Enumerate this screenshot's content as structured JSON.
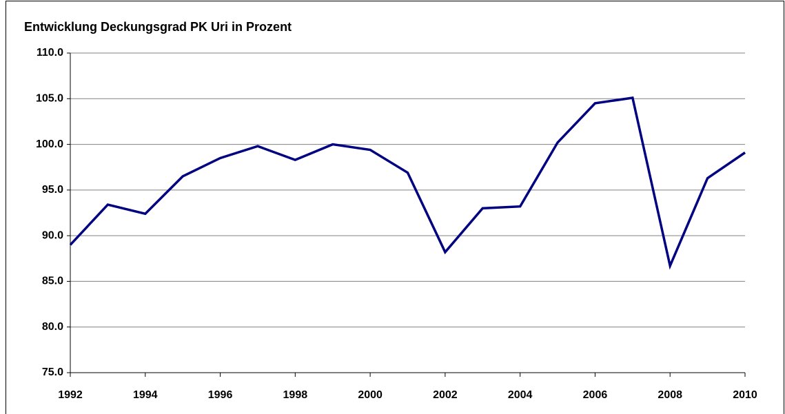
{
  "chart_data": {
    "type": "line",
    "title": "Entwicklung Deckungsgrad PK Uri in Prozent",
    "x": [
      1992,
      1993,
      1994,
      1995,
      1996,
      1997,
      1998,
      1999,
      2000,
      2001,
      2002,
      2003,
      2004,
      2005,
      2006,
      2007,
      2008,
      2009,
      2010
    ],
    "series": [
      {
        "name": "Deckungsgrad",
        "color": "#000080",
        "values": [
          89.0,
          93.4,
          92.4,
          96.5,
          98.5,
          99.8,
          98.3,
          100.0,
          99.4,
          96.9,
          88.2,
          93.0,
          93.2,
          100.2,
          104.5,
          105.1,
          86.7,
          96.3,
          99.1
        ]
      }
    ],
    "xlim": [
      1992,
      2010
    ],
    "xticks": [
      1992,
      1994,
      1996,
      1998,
      2000,
      2002,
      2004,
      2006,
      2008,
      2010
    ],
    "ylim": [
      75,
      110
    ],
    "yticks": [
      {
        "value": 75,
        "label": "75.0"
      },
      {
        "value": 80,
        "label": "80.0"
      },
      {
        "value": 85,
        "label": "85.0"
      },
      {
        "value": 90,
        "label": "90.0"
      },
      {
        "value": 95,
        "label": "95.0"
      },
      {
        "value": 100,
        "label": "100.0"
      },
      {
        "value": 105,
        "label": "105.0"
      },
      {
        "value": 110,
        "label": "110.0"
      }
    ],
    "grid": true
  }
}
